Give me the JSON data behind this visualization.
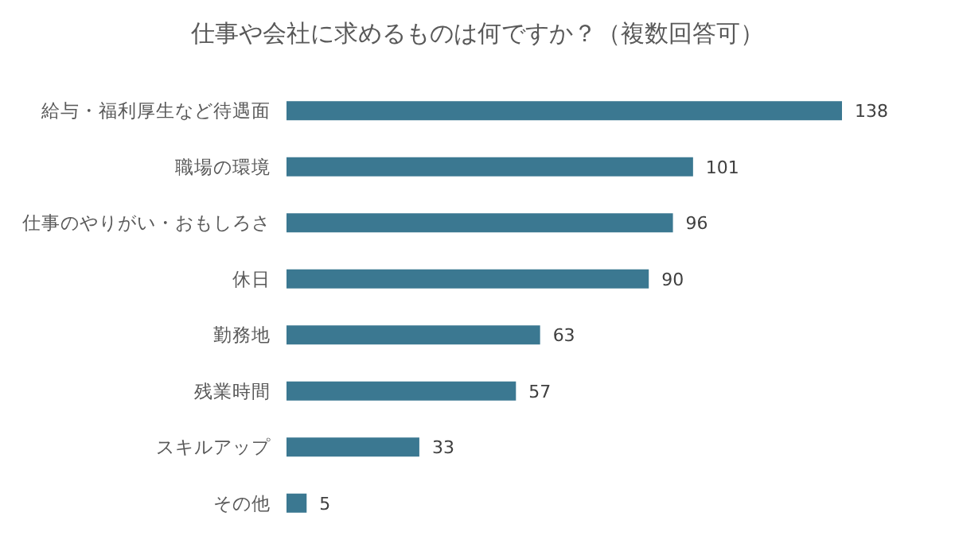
{
  "chart_data": {
    "type": "bar",
    "orientation": "horizontal",
    "title": "仕事や会社に求めるものは何ですか？（複数回答可）",
    "categories": [
      "給与・福利厚生など待遇面",
      "職場の環境",
      "仕事のやりがい・おもしろさ",
      "休日",
      "勤務地",
      "残業時間",
      "スキルアップ",
      "その他"
    ],
    "values": [
      138,
      101,
      96,
      90,
      63,
      57,
      33,
      5
    ],
    "color": "#3b7891",
    "data_labels": true
  }
}
